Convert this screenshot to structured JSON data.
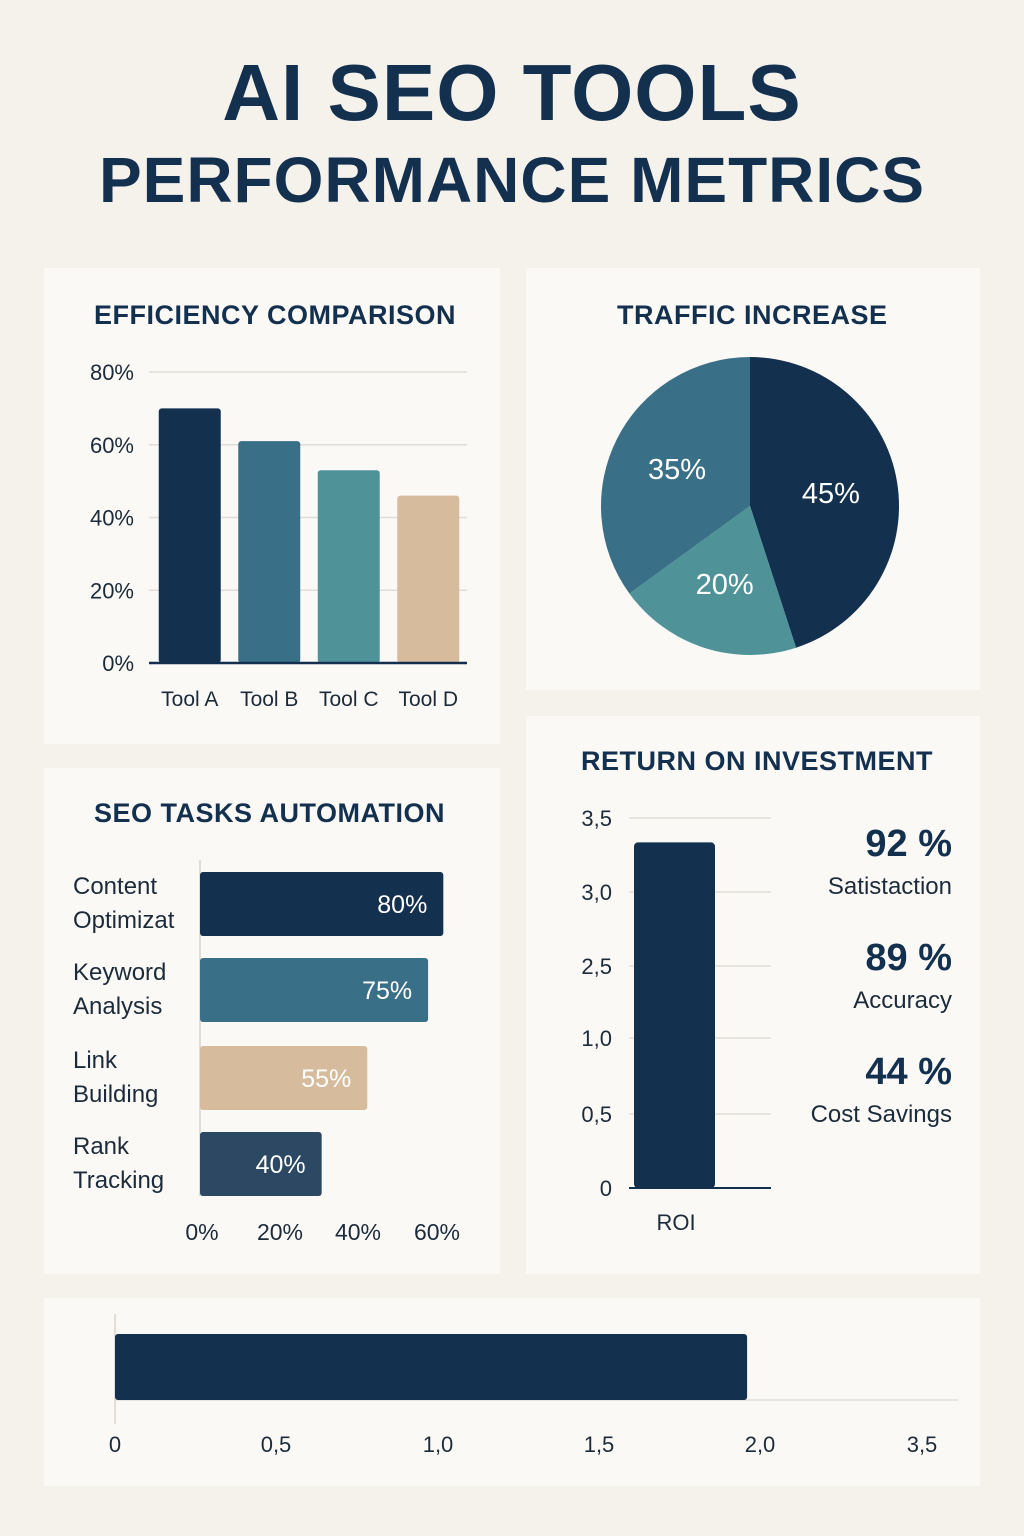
{
  "title": {
    "line1": "AI SEO TOOLS",
    "line2": "PERFORMANCE METRICS"
  },
  "colors": {
    "navy": "#14304f",
    "steel": "#3a6f88",
    "teal": "#4f9399",
    "tan": "#d6bc9c",
    "slate": "#2c4862"
  },
  "chart_data": [
    {
      "type": "bar",
      "title": "EFFICIENCY COMPARISON",
      "categories": [
        "Tool A",
        "Tool B",
        "Tool C",
        "Tool D"
      ],
      "values": [
        70,
        61,
        53,
        46
      ],
      "ylim": [
        0,
        80
      ],
      "yticks": [
        "0%",
        "20%",
        "40%",
        "60%",
        "80%"
      ],
      "colors": [
        "#14304f",
        "#3a6f88",
        "#4f9399",
        "#d6bc9c"
      ],
      "grid": true
    },
    {
      "type": "pie",
      "title": "TRAFFIC INCREASE",
      "values": [
        45,
        20,
        35
      ],
      "labels": [
        "45%",
        "20%",
        "35%"
      ],
      "colors": [
        "#14304f",
        "#4f9399",
        "#3a6f88"
      ]
    },
    {
      "type": "bar",
      "orientation": "horizontal",
      "title": "SEO TASKS AUTOMATION",
      "categories": [
        "Content Optimizat",
        "Keyword Analysis",
        "Link Building",
        "Rank Tracking"
      ],
      "category_lines": [
        [
          "Content",
          "Optimizat"
        ],
        [
          "Keyword",
          "Analysis"
        ],
        [
          "Link",
          "Building"
        ],
        [
          "Rank",
          "Tracking"
        ]
      ],
      "values": [
        80,
        75,
        55,
        40
      ],
      "value_labels": [
        "80%",
        "75%",
        "55%",
        "40%"
      ],
      "xticks": [
        "0%",
        "20%",
        "40%",
        "60%"
      ],
      "colors": [
        "#14304f",
        "#3a6f88",
        "#d6bc9c",
        "#2c4862"
      ]
    },
    {
      "type": "bar",
      "title": "RETURN ON INVESTMENT",
      "categories": [
        "ROI"
      ],
      "values": [
        3.25
      ],
      "yticks": [
        "0",
        "0,5",
        "1,0",
        "2,5",
        "3,0",
        "3,5"
      ],
      "ylim": [
        0,
        3.5
      ],
      "colors": [
        "#14304f"
      ],
      "grid": true
    },
    {
      "type": "bar",
      "orientation": "horizontal",
      "categories": [
        ""
      ],
      "values": [
        1.96
      ],
      "xticks": [
        "0",
        "0,5",
        "1,0",
        "1,5",
        "2,0",
        "3,5"
      ],
      "colors": [
        "#14304f"
      ]
    }
  ],
  "stats": [
    {
      "value": "92 %",
      "label": "Satistaction"
    },
    {
      "value": "89 %",
      "label": "Accuracy"
    },
    {
      "value": "44 %",
      "label": "Cost Savings"
    }
  ]
}
